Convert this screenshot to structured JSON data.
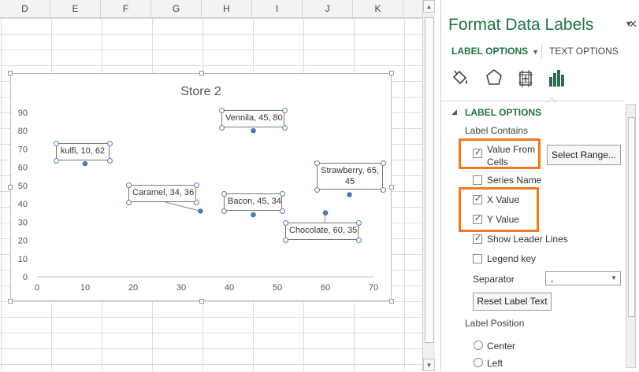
{
  "sheet": {
    "columns": [
      "D",
      "E",
      "F",
      "G",
      "H",
      "I",
      "J",
      "K"
    ]
  },
  "chart": {
    "title": "Store 2"
  },
  "chart_data": {
    "type": "scatter",
    "title": "Store 2",
    "xlim": [
      0,
      70
    ],
    "ylim": [
      0,
      90
    ],
    "xticks": [
      0,
      10,
      20,
      30,
      40,
      50,
      60,
      70
    ],
    "yticks": [
      0,
      10,
      20,
      30,
      40,
      50,
      60,
      70,
      80,
      90
    ],
    "grid": false,
    "points": [
      {
        "name": "kulfi",
        "x": 10,
        "y": 62,
        "label": "kulfi, 10, 62"
      },
      {
        "name": "Caramel",
        "x": 34,
        "y": 36,
        "label": "Caramel, 34, 36"
      },
      {
        "name": "Vennila",
        "x": 45,
        "y": 80,
        "label": "Vennila, 45, 80"
      },
      {
        "name": "Bacon",
        "x": 45,
        "y": 34,
        "label": "Bacon, 45, 34"
      },
      {
        "name": "Strawberry",
        "x": 65,
        "y": 45,
        "label": "Strawberry, 65, 45"
      },
      {
        "name": "Chocolate",
        "x": 60,
        "y": 35,
        "label": "Chocolate, 60, 35"
      }
    ],
    "marker_color": "#4a7ab5"
  },
  "pane": {
    "title": "Format Data Labels",
    "tabs": {
      "label_options": "LABEL OPTIONS",
      "text_options": "TEXT OPTIONS"
    },
    "icons": [
      "fill-line-icon",
      "effects-icon",
      "size-properties-icon",
      "label-options-icon"
    ],
    "section": "LABEL OPTIONS",
    "label_contains": "Label Contains",
    "value_from_cells": "Value From Cells",
    "value_from_cells_line1": "Value From",
    "value_from_cells_line2": "Cells",
    "select_range": "Select Range...",
    "series_name": "Series Name",
    "x_value": "X Value",
    "y_value": "Y Value",
    "show_leader_lines": "Show Leader Lines",
    "legend_key": "Legend key",
    "separator_label": "Separator",
    "separator_value": ",",
    "reset_label_text": "Reset Label Text",
    "label_position": "Label Position",
    "center": "Center",
    "left": "Left",
    "checked": {
      "value_from_cells": true,
      "series_name": false,
      "x_value": true,
      "y_value": true,
      "show_leader_lines": true,
      "legend_key": false
    },
    "accent_color": "#217346",
    "highlight_color": "#ef7a24"
  }
}
